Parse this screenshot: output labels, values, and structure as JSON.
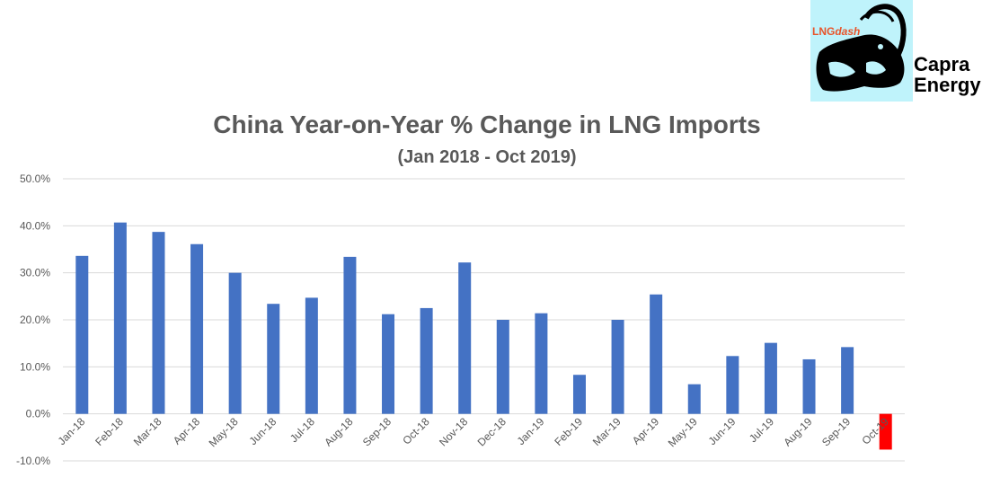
{
  "logo": {
    "badge_text_lng": "LNG",
    "badge_text_dash": "dash",
    "brand_line1": "Capra",
    "brand_line2": "Energy",
    "icon": "ibex-icon",
    "background": "#bff3fb",
    "accent": "#e8542a"
  },
  "chart_data": {
    "type": "bar",
    "title": "China Year-on-Year % Change in LNG Imports",
    "subtitle": "(Jan 2018 - Oct 2019)",
    "xlabel": "",
    "ylabel": "",
    "ylim": [
      -10,
      50
    ],
    "yticks": [
      -10,
      0,
      10,
      20,
      30,
      40,
      50
    ],
    "ytick_labels": [
      "-10.0%",
      "0.0%",
      "10.0%",
      "20.0%",
      "30.0%",
      "40.0%",
      "50.0%"
    ],
    "grid": true,
    "legend": "none",
    "categories": [
      "Jan-18",
      "Feb-18",
      "Mar-18",
      "Apr-18",
      "May-18",
      "Jun-18",
      "Jul-18",
      "Aug-18",
      "Sep-18",
      "Oct-18",
      "Nov-18",
      "Dec-18",
      "Jan-19",
      "Feb-19",
      "Mar-19",
      "Apr-19",
      "May-19",
      "Jun-19",
      "Jul-19",
      "Aug-19",
      "Sep-19",
      "Oct-19"
    ],
    "values": [
      33.6,
      40.7,
      38.7,
      36.1,
      30.0,
      23.4,
      24.7,
      33.4,
      21.2,
      22.5,
      32.2,
      20.0,
      21.4,
      8.3,
      20.0,
      25.4,
      6.3,
      12.3,
      15.1,
      11.6,
      14.2,
      -7.6
    ],
    "colors": {
      "positive": "#4472c4",
      "negative": "#ff0000",
      "grid": "#d9d9d9",
      "text": "#595959"
    }
  }
}
